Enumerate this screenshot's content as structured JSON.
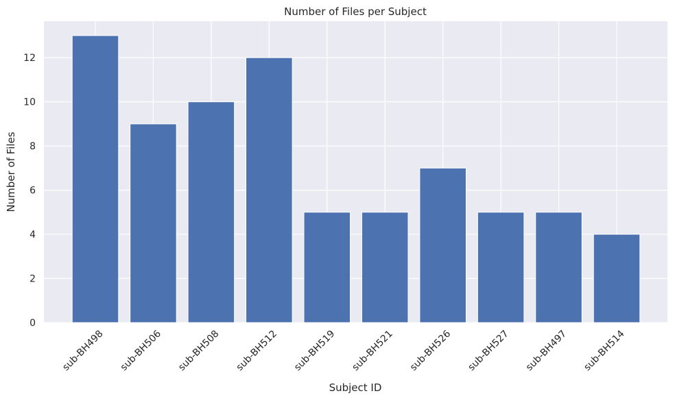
{
  "chart_data": {
    "type": "bar",
    "title": "Number of Files per Subject",
    "xlabel": "Subject ID",
    "ylabel": "Number of Files",
    "categories": [
      "sub-BH498",
      "sub-BH506",
      "sub-BH508",
      "sub-BH512",
      "sub-BH519",
      "sub-BH521",
      "sub-BH526",
      "sub-BH527",
      "sub-BH497",
      "sub-BH514"
    ],
    "values": [
      13,
      9,
      10,
      12,
      5,
      5,
      7,
      5,
      5,
      4
    ],
    "yticks": [
      0,
      2,
      4,
      6,
      8,
      10,
      12
    ],
    "ylim": [
      0,
      13.65
    ],
    "grid": true,
    "colors": {
      "bar": "#4c72b0",
      "background": "#eaeaf2",
      "grid": "#ffffff",
      "text": "#262626"
    }
  }
}
